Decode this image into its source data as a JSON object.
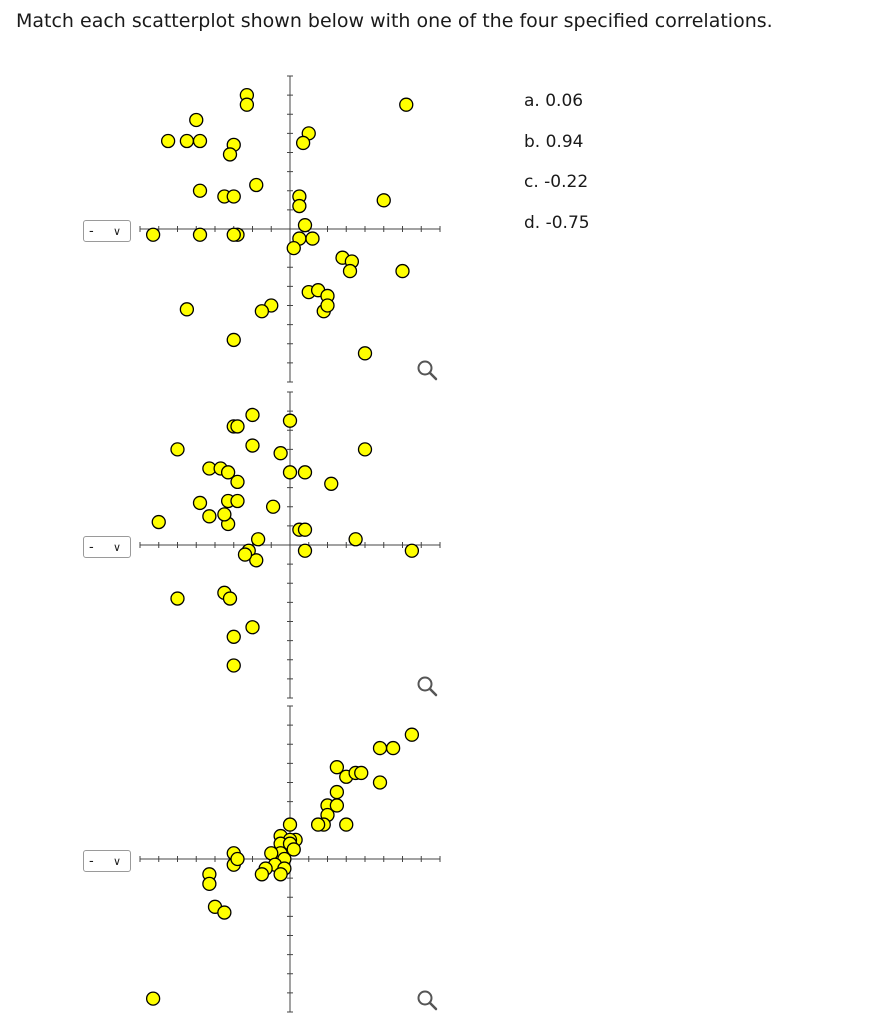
{
  "question": "Match each scatterplot shown below with one of the four specified correlations.",
  "choices": [
    "a. 0.06",
    "b. 0.94",
    "c. -0.22",
    "d. -0.75"
  ],
  "colors": {
    "point_fill": "#ffff00",
    "point_stroke": "#000000",
    "axis": "#444444"
  },
  "icons": {
    "select_arrow": "chevron-down-icon",
    "zoom": "magnifier-icon"
  },
  "chart_data": [
    {
      "type": "scatter",
      "selected_value": "-",
      "xlim": [
        -8,
        8
      ],
      "ylim": [
        -8,
        8
      ],
      "x_ticks_step": 1,
      "y_ticks_step": 1,
      "grid": false,
      "points": [
        [
          -2.3,
          7.0
        ],
        [
          -2.3,
          6.5
        ],
        [
          -5.0,
          5.7
        ],
        [
          -6.5,
          4.6
        ],
        [
          -5.5,
          4.6
        ],
        [
          -4.8,
          4.6
        ],
        [
          -3.0,
          4.4
        ],
        [
          -3.2,
          3.9
        ],
        [
          -4.8,
          2.0
        ],
        [
          -3.5,
          1.7
        ],
        [
          -3.0,
          1.7
        ],
        [
          -1.8,
          2.3
        ],
        [
          1.0,
          5.0
        ],
        [
          0.7,
          4.5
        ],
        [
          0.5,
          1.7
        ],
        [
          0.5,
          1.2
        ],
        [
          0.8,
          0.2
        ],
        [
          0.5,
          -0.5
        ],
        [
          0.2,
          -1.0
        ],
        [
          1.2,
          -0.5
        ],
        [
          2.8,
          -1.5
        ],
        [
          3.3,
          -1.7
        ],
        [
          3.2,
          -2.2
        ],
        [
          -2.8,
          -0.3
        ],
        [
          -4.8,
          -0.3
        ],
        [
          -7.3,
          -0.3
        ],
        [
          1.0,
          -3.3
        ],
        [
          1.5,
          -3.2
        ],
        [
          2.0,
          -3.5
        ],
        [
          1.8,
          -4.3
        ],
        [
          2.0,
          -4.0
        ],
        [
          -1.0,
          -4.0
        ],
        [
          -1.5,
          -4.3
        ],
        [
          -5.5,
          -4.2
        ],
        [
          -3.0,
          -5.8
        ],
        [
          5.0,
          1.5
        ],
        [
          6.0,
          -2.2
        ],
        [
          4.0,
          -6.5
        ],
        [
          6.2,
          6.5
        ],
        [
          -3.0,
          -0.3
        ]
      ]
    },
    {
      "type": "scatter",
      "selected_value": "-",
      "xlim": [
        -8,
        8
      ],
      "ylim": [
        -8,
        8
      ],
      "x_ticks_step": 1,
      "y_ticks_step": 1,
      "grid": false,
      "points": [
        [
          -2.0,
          6.8
        ],
        [
          0.0,
          6.5
        ],
        [
          -3.0,
          6.2
        ],
        [
          -2.8,
          6.2
        ],
        [
          -6.0,
          5.0
        ],
        [
          -2.0,
          5.2
        ],
        [
          -0.5,
          4.8
        ],
        [
          -4.3,
          4.0
        ],
        [
          -3.7,
          4.0
        ],
        [
          -3.3,
          3.8
        ],
        [
          -2.8,
          3.3
        ],
        [
          0.0,
          3.8
        ],
        [
          0.8,
          3.8
        ],
        [
          2.2,
          3.2
        ],
        [
          -4.8,
          2.2
        ],
        [
          -3.3,
          2.3
        ],
        [
          -2.8,
          2.3
        ],
        [
          -4.3,
          1.5
        ],
        [
          -3.3,
          1.1
        ],
        [
          -3.5,
          1.6
        ],
        [
          -0.9,
          2.0
        ],
        [
          -1.7,
          0.3
        ],
        [
          -2.2,
          -0.3
        ],
        [
          -1.8,
          -0.8
        ],
        [
          0.5,
          0.8
        ],
        [
          0.8,
          0.8
        ],
        [
          0.8,
          -0.3
        ],
        [
          3.5,
          0.3
        ],
        [
          4.0,
          5.0
        ],
        [
          6.5,
          -0.3
        ],
        [
          -7.0,
          1.2
        ],
        [
          -6.0,
          -2.8
        ],
        [
          -3.5,
          -2.5
        ],
        [
          -3.2,
          -2.8
        ],
        [
          -3.0,
          -4.8
        ],
        [
          -2.0,
          -4.3
        ],
        [
          -3.0,
          -6.3
        ],
        [
          -2.4,
          -0.5
        ]
      ]
    },
    {
      "type": "scatter",
      "selected_value": "-",
      "xlim": [
        -8,
        8
      ],
      "ylim": [
        -8,
        8
      ],
      "x_ticks_step": 1,
      "y_ticks_step": 1,
      "grid": false,
      "points": [
        [
          6.5,
          6.5
        ],
        [
          4.8,
          5.8
        ],
        [
          5.5,
          5.8
        ],
        [
          2.5,
          4.8
        ],
        [
          3.0,
          4.3
        ],
        [
          3.5,
          4.5
        ],
        [
          3.8,
          4.5
        ],
        [
          4.8,
          4.0
        ],
        [
          2.5,
          3.5
        ],
        [
          2.0,
          2.8
        ],
        [
          2.5,
          2.8
        ],
        [
          2.0,
          2.3
        ],
        [
          1.8,
          1.8
        ],
        [
          3.0,
          1.8
        ],
        [
          1.5,
          1.8
        ],
        [
          0.0,
          1.8
        ],
        [
          -0.5,
          1.2
        ],
        [
          0.3,
          1.0
        ],
        [
          0.0,
          1.0
        ],
        [
          -0.5,
          0.8
        ],
        [
          0.0,
          0.8
        ],
        [
          -0.5,
          0.3
        ],
        [
          -1.0,
          0.3
        ],
        [
          -0.3,
          0.0
        ],
        [
          -0.8,
          -0.3
        ],
        [
          -0.3,
          -0.5
        ],
        [
          -0.5,
          -0.8
        ],
        [
          -1.3,
          -0.5
        ],
        [
          -1.5,
          -0.8
        ],
        [
          -3.0,
          0.3
        ],
        [
          -3.0,
          -0.3
        ],
        [
          -4.3,
          -0.8
        ],
        [
          -4.3,
          -1.3
        ],
        [
          -4.0,
          -2.5
        ],
        [
          -3.5,
          -2.8
        ],
        [
          -7.3,
          -7.3
        ],
        [
          -2.8,
          0.0
        ],
        [
          0.2,
          0.5
        ]
      ]
    }
  ]
}
